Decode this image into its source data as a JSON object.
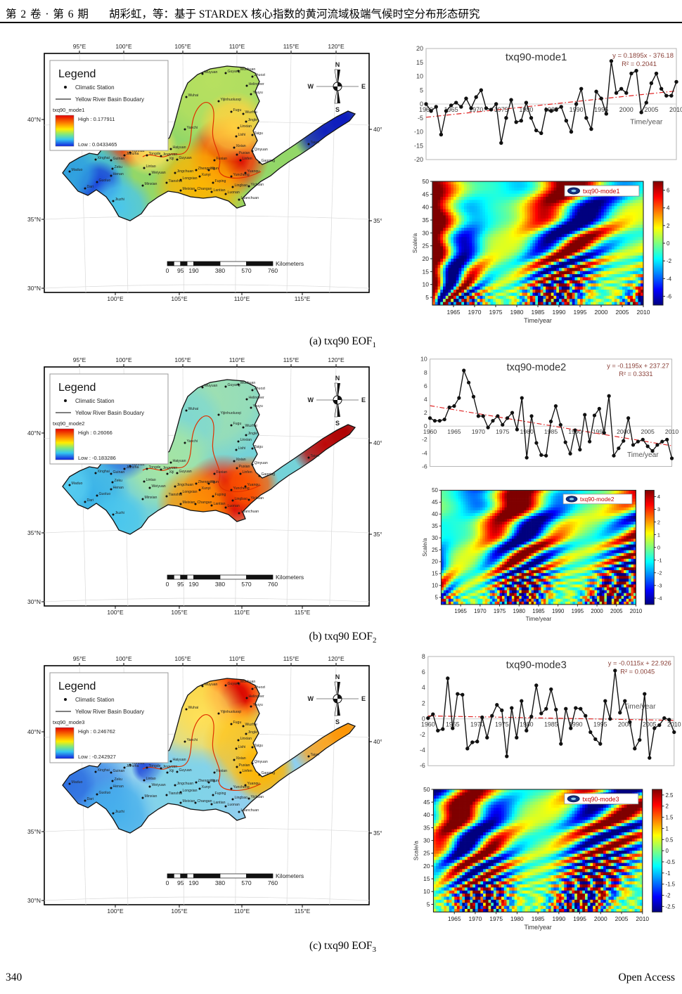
{
  "header": {
    "issue": "第 2 卷 · 第 6 期",
    "title": "胡彩虹，等：基于 STARDEX 核心指数的黄河流域极端气候时空分布形态研究"
  },
  "footer": {
    "page_number": "340",
    "license": "Open Access"
  },
  "map_common": {
    "legend_title": "Legend",
    "station_label": "Climatic Station",
    "boundary_label": "Yellow River Basin Boudary",
    "top_ticks": [
      "95°E",
      "100°E",
      "105°E",
      "110°E",
      "115°E",
      "120°E"
    ],
    "bottom_ticks": [
      "100°E",
      "105°E",
      "110°E",
      "115°E"
    ],
    "left_ticks": [
      "40°N",
      "35°N",
      "30°N"
    ],
    "right_ticks": [
      "40°N",
      "35°N"
    ],
    "compass": {
      "n": "N",
      "w": "W",
      "e": "E",
      "s": "S"
    },
    "scalebar": {
      "labels": [
        "0",
        "95",
        "190",
        "380",
        "570",
        "760"
      ],
      "unit": "Kilometers"
    },
    "stations": [
      [
        "Wuyuan",
        255,
        45
      ],
      [
        "Guyang",
        288,
        44
      ],
      [
        "Wuchuan",
        306,
        41
      ],
      [
        "Zhuozi",
        326,
        49
      ],
      [
        "Helingeer",
        318,
        62
      ],
      [
        "Youyu",
        324,
        74
      ],
      [
        "Wuhai",
        232,
        78
      ],
      [
        "Yijinhuoluoqi",
        278,
        84
      ],
      [
        "Fugu",
        296,
        99
      ],
      [
        "Wuzhai",
        313,
        102
      ],
      [
        "Jingle",
        317,
        113
      ],
      [
        "Linxian",
        306,
        122
      ],
      [
        "Lishi",
        303,
        134
      ],
      [
        "Taigu",
        326,
        132
      ],
      [
        "Yanchi",
        230,
        124
      ],
      [
        "Menyuan",
        140,
        128
      ],
      [
        "Datong",
        143,
        139
      ],
      [
        "Huangyuan",
        117,
        143
      ],
      [
        "Minhe",
        156,
        152
      ],
      [
        "Jianzha",
        144,
        161
      ],
      [
        "Guinan",
        125,
        168
      ],
      [
        "Xinghai",
        103,
        167
      ],
      [
        "Tongde",
        176,
        161
      ],
      [
        "Xunhua",
        152,
        157
      ],
      [
        "Haiyuan",
        210,
        152
      ],
      [
        "Xiji",
        205,
        168
      ],
      [
        "Guyuan",
        219,
        167
      ],
      [
        "Jingyuan",
        196,
        162
      ],
      [
        "Zeku",
        127,
        180
      ],
      [
        "Henan",
        125,
        190
      ],
      [
        "Guoluo",
        105,
        199
      ],
      [
        "Maduo",
        66,
        184
      ],
      [
        "Dari",
        88,
        208
      ],
      [
        "Jiuzhi",
        128,
        226
      ],
      [
        "Lintao",
        172,
        179
      ],
      [
        "Weiyuan",
        180,
        188
      ],
      [
        "Minxian",
        170,
        204
      ],
      [
        "Tianshui",
        204,
        200
      ],
      [
        "Jingchuan",
        216,
        186
      ],
      [
        "Longxian",
        224,
        196
      ],
      [
        "Zhengning",
        246,
        182
      ],
      [
        "Xunyi",
        251,
        191
      ],
      [
        "Yijun",
        264,
        182
      ],
      [
        "Fuping",
        270,
        200
      ],
      [
        "Meixian",
        224,
        211
      ],
      [
        "Changan",
        245,
        211
      ],
      [
        "Lantian",
        268,
        213
      ],
      [
        "Luonan",
        288,
        216
      ],
      [
        "Luanchuan",
        307,
        224
      ],
      [
        "Fuxian",
        272,
        168
      ],
      [
        "Xixian",
        300,
        150
      ],
      [
        "Puxian",
        304,
        160
      ],
      [
        "Qinyuan",
        326,
        155
      ],
      [
        "Linfen",
        309,
        168
      ],
      [
        "Gaoping",
        336,
        171
      ],
      [
        "Yuanqu",
        316,
        186
      ],
      [
        "Yuncheng",
        296,
        191
      ],
      [
        "Lingbao",
        298,
        206
      ],
      [
        "Yichuan",
        321,
        205
      ],
      [
        "Taian",
        406,
        145
      ]
    ]
  },
  "panels": [
    {
      "caption_prefix": "(a) txq90 EOF",
      "caption_sub": "1",
      "map_legend": {
        "layer": "txq90_mode1",
        "high": "High : 0.177911",
        "low": "Low : 0.0433465"
      }
    },
    {
      "caption_prefix": "(b) txq90 EOF",
      "caption_sub": "2",
      "map_legend": {
        "layer": "txq90_mode2",
        "high": "High : 0.26066",
        "low": "Low : -0.183286"
      }
    },
    {
      "caption_prefix": "(c) txq90 EOF",
      "caption_sub": "3",
      "map_legend": {
        "layer": "txq90_mode3",
        "high": "High : 0.246762",
        "low": "Low : -0.242927"
      }
    }
  ],
  "chart_data": [
    {
      "id": "timeseries-mode1",
      "type": "line",
      "title": "txq90-mode1",
      "xlabel": "Time/year",
      "x_years": {
        "start": 1960,
        "end": 2010,
        "step": 1
      },
      "values": [
        0,
        -2.5,
        -1,
        -11,
        -2.5,
        -0.5,
        0.5,
        -1,
        2,
        -1.5,
        2.5,
        5,
        -1.5,
        -2,
        0,
        -14,
        -5,
        1.5,
        -6.5,
        -6,
        0.5,
        -5,
        -9.5,
        -10.5,
        -2,
        -2.5,
        -2,
        -1,
        -6,
        -10,
        0,
        5.5,
        -5,
        -9,
        4.5,
        2,
        -3.5,
        15.5,
        4,
        5.5,
        4,
        11,
        12,
        -3,
        0.5,
        7.5,
        11,
        5.5,
        3,
        3,
        8
      ],
      "trend": {
        "slope": 0.1895,
        "intercept": -376.18,
        "equation": "y = 0.1895x - 376.18",
        "r2": "R² = 0.2041"
      },
      "ylim": [
        -20,
        20
      ],
      "ytick_step": 5,
      "xticks": [
        1960,
        1965,
        1970,
        1975,
        1980,
        1985,
        1990,
        1995,
        2000,
        2005,
        2010
      ],
      "xlabel_pos": {
        "year": 2004,
        "value": -7.2
      }
    },
    {
      "id": "wavelet-mode1",
      "type": "heatmap",
      "legend": "txq90-mode1",
      "xlabel": "Time/year",
      "ylabel": "Scale/a",
      "x_range": [
        1960,
        2010
      ],
      "xticks": [
        1965,
        1970,
        1975,
        1980,
        1985,
        1990,
        1995,
        2000,
        2005,
        2010
      ],
      "y_range": [
        2,
        50
      ],
      "yticks": [
        5,
        10,
        15,
        20,
        25,
        30,
        35,
        40,
        45,
        50
      ],
      "colorbar_ticks": [
        6,
        4,
        2,
        0,
        -2,
        -4,
        -6
      ],
      "cb_range": [
        -7,
        7
      ],
      "note": "Morlet wavelet real-part contours of txq90 mode1 series (pattern approximated)"
    },
    {
      "id": "timeseries-mode2",
      "type": "line",
      "title": "txq90-mode2",
      "xlabel": "Time/year",
      "x_years": {
        "start": 1960,
        "end": 2010,
        "step": 1
      },
      "values": [
        1.2,
        0.8,
        0.8,
        1,
        2.8,
        3,
        4.2,
        8.3,
        6.5,
        4.4,
        1.5,
        1.5,
        -0.2,
        0.8,
        1.5,
        0.2,
        1.2,
        2,
        -0.5,
        4.2,
        -4.7,
        1.5,
        -2.5,
        -4.3,
        -4.4,
        0.7,
        3,
        0.2,
        -2.4,
        -4.1,
        -0.6,
        -3.5,
        1.7,
        -2.3,
        1.6,
        2.6,
        -1,
        4.5,
        -4.4,
        -3.3,
        -2.2,
        1.2,
        -2.8,
        -2.3,
        -2,
        -3,
        -3.7,
        -2.8,
        -2.3,
        -2,
        -4.8
      ],
      "trend": {
        "slope": -0.1195,
        "intercept": 237.27,
        "equation": "y = -0.1195x + 237.27",
        "r2": "R² = 0.3331"
      },
      "ylim": [
        -6,
        10
      ],
      "ytick_step": 2,
      "xticks": [
        1960,
        1965,
        1970,
        1975,
        1980,
        1985,
        1990,
        1995,
        2000,
        2005,
        2010
      ],
      "xlabel_pos": {
        "year": 2004,
        "value": -4.6
      }
    },
    {
      "id": "wavelet-mode2",
      "type": "heatmap",
      "legend": "txq90-mode2",
      "xlabel": "Time/year",
      "ylabel": "Scale/a",
      "x_range": [
        1960,
        2010
      ],
      "xticks": [
        1965,
        1970,
        1975,
        1980,
        1985,
        1990,
        1995,
        2000,
        2005,
        2010
      ],
      "y_range": [
        2,
        50
      ],
      "yticks": [
        5,
        10,
        15,
        20,
        25,
        30,
        35,
        40,
        45,
        50
      ],
      "colorbar_ticks": [
        4,
        3,
        2,
        1,
        0,
        -1,
        -2,
        -3,
        -4
      ],
      "cb_range": [
        -4.5,
        4.5
      ],
      "note": "Morlet wavelet real-part contours of txq90 mode2 series (pattern approximated)"
    },
    {
      "id": "timeseries-mode3",
      "type": "line",
      "title": "txq90-mode3",
      "xlabel": "Time/year",
      "x_years": {
        "start": 1960,
        "end": 2010,
        "step": 1
      },
      "values": [
        0.1,
        0.6,
        -1.5,
        -1.3,
        5.2,
        -1.2,
        3.2,
        3.1,
        -3.8,
        -3,
        -2.9,
        0.2,
        -2.4,
        0.4,
        1.8,
        1.1,
        -4.8,
        1.4,
        -2.4,
        2.3,
        -1.5,
        0.3,
        4.3,
        0.7,
        1.3,
        3.8,
        1.2,
        -3.2,
        1.3,
        -1.2,
        1.4,
        1.3,
        0.4,
        -1.7,
        -2.6,
        -3.2,
        2.3,
        0,
        6.2,
        0.8,
        2.3,
        -0.4,
        -3.8,
        -2.7,
        3.2,
        -5,
        -1.2,
        -0.8,
        0.1,
        -0.1,
        -1.7
      ],
      "trend": {
        "slope": -0.0115,
        "intercept": 22.926,
        "equation": "y = -0.0115x + 22.926",
        "r2": "R² = 0.0045"
      },
      "ylim": [
        -6,
        8
      ],
      "ytick_step": 2,
      "xticks": [
        1960,
        1965,
        1970,
        1975,
        1980,
        1985,
        1990,
        1995,
        2000,
        2005,
        2010
      ],
      "xlabel_pos": {
        "year": 2003,
        "value": 1.3
      }
    },
    {
      "id": "wavelet-mode3",
      "type": "heatmap",
      "legend": "txq90-mode3",
      "xlabel": "Time/year",
      "ylabel": "Scale/a",
      "x_range": [
        1960,
        2010
      ],
      "xticks": [
        1965,
        1970,
        1975,
        1980,
        1985,
        1990,
        1995,
        2000,
        2005,
        2010
      ],
      "y_range": [
        2,
        50
      ],
      "yticks": [
        5,
        10,
        15,
        20,
        25,
        30,
        35,
        40,
        45,
        50
      ],
      "colorbar_ticks": [
        2.5,
        2,
        1.5,
        1,
        0.5,
        0,
        -0.5,
        -1,
        -1.5,
        -2,
        -2.5
      ],
      "cb_range": [
        -2.75,
        2.75
      ],
      "note": "Morlet wavelet real-part contours of txq90 mode3 series (pattern approximated)"
    }
  ]
}
